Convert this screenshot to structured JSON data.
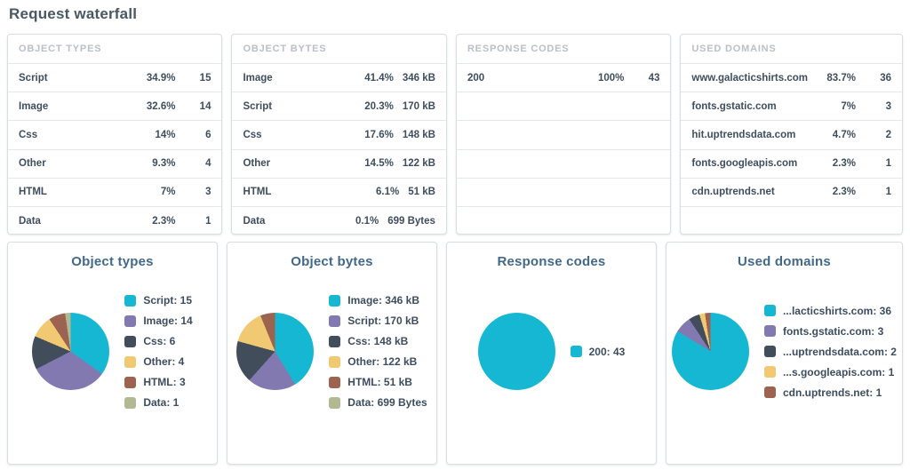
{
  "page_title": "Request waterfall",
  "palette": {
    "cyan": "#16b7d3",
    "purple": "#8279b1",
    "dark_slate": "#414d5b",
    "yellow": "#f2c973",
    "brown": "#9c6350",
    "sage": "#b2b892"
  },
  "summary_tables": [
    {
      "header": "OBJECT TYPES",
      "total_slots": 6,
      "rows": [
        {
          "label": "Script",
          "percent": "34.9%",
          "value": "15"
        },
        {
          "label": "Image",
          "percent": "32.6%",
          "value": "14"
        },
        {
          "label": "Css",
          "percent": "14%",
          "value": "6"
        },
        {
          "label": "Other",
          "percent": "9.3%",
          "value": "4"
        },
        {
          "label": "HTML",
          "percent": "7%",
          "value": "3"
        },
        {
          "label": "Data",
          "percent": "2.3%",
          "value": "1"
        }
      ]
    },
    {
      "header": "OBJECT BYTES",
      "total_slots": 6,
      "rows": [
        {
          "label": "Image",
          "percent": "41.4%",
          "value": "346 kB"
        },
        {
          "label": "Script",
          "percent": "20.3%",
          "value": "170 kB"
        },
        {
          "label": "Css",
          "percent": "17.6%",
          "value": "148 kB"
        },
        {
          "label": "Other",
          "percent": "14.5%",
          "value": "122 kB"
        },
        {
          "label": "HTML",
          "percent": "6.1%",
          "value": "51 kB"
        },
        {
          "label": "Data",
          "percent": "0.1%",
          "value": "699 Bytes"
        }
      ]
    },
    {
      "header": "RESPONSE CODES",
      "total_slots": 6,
      "rows": [
        {
          "label": "200",
          "percent": "100%",
          "value": "43"
        }
      ]
    },
    {
      "header": "USED DOMAINS",
      "total_slots": 6,
      "rows": [
        {
          "label": "www.galacticshirts.com",
          "percent": "83.7%",
          "value": "36"
        },
        {
          "label": "fonts.gstatic.com",
          "percent": "7%",
          "value": "3"
        },
        {
          "label": "hit.uptrendsdata.com",
          "percent": "4.7%",
          "value": "2"
        },
        {
          "label": "fonts.googleapis.com",
          "percent": "2.3%",
          "value": "1"
        },
        {
          "label": "cdn.uptrends.net",
          "percent": "2.3%",
          "value": "1"
        }
      ]
    }
  ],
  "chart_data": [
    {
      "type": "pie",
      "title": "Object types",
      "legend_position": "right",
      "labels": [
        "Script",
        "Image",
        "Css",
        "Other",
        "HTML",
        "Data"
      ],
      "values": [
        15,
        14,
        6,
        4,
        3,
        1
      ],
      "legend_labels": [
        "Script: 15",
        "Image: 14",
        "Css: 6",
        "Other: 4",
        "HTML: 3",
        "Data: 1"
      ],
      "colors": [
        "#16b7d3",
        "#8279b1",
        "#414d5b",
        "#f2c973",
        "#9c6350",
        "#b2b892"
      ]
    },
    {
      "type": "pie",
      "title": "Object bytes",
      "legend_position": "right",
      "labels": [
        "Image",
        "Script",
        "Css",
        "Other",
        "HTML",
        "Data"
      ],
      "values": [
        346,
        170,
        148,
        122,
        51,
        0.7
      ],
      "legend_labels": [
        "Image: 346 kB",
        "Script: 170 kB",
        "Css: 148 kB",
        "Other: 122 kB",
        "HTML: 51 kB",
        "Data: 699 Bytes"
      ],
      "colors": [
        "#16b7d3",
        "#8279b1",
        "#414d5b",
        "#f2c973",
        "#9c6350",
        "#b2b892"
      ]
    },
    {
      "type": "pie",
      "title": "Response codes",
      "legend_position": "right",
      "labels": [
        "200"
      ],
      "values": [
        43
      ],
      "legend_labels": [
        "200: 43"
      ],
      "colors": [
        "#16b7d3"
      ]
    },
    {
      "type": "pie",
      "title": "Used domains",
      "legend_position": "right",
      "labels": [
        "www.galacticshirts.com",
        "fonts.gstatic.com",
        "hit.uptrendsdata.com",
        "fonts.googleapis.com",
        "cdn.uptrends.net"
      ],
      "values": [
        36,
        3,
        2,
        1,
        1
      ],
      "legend_labels": [
        "...lacticshirts.com: 36",
        "fonts.gstatic.com: 3",
        "...uptrendsdata.com: 2",
        "...s.googleapis.com: 1",
        "cdn.uptrends.net: 1"
      ],
      "colors": [
        "#16b7d3",
        "#8279b1",
        "#414d5b",
        "#f2c973",
        "#9c6350"
      ]
    }
  ]
}
